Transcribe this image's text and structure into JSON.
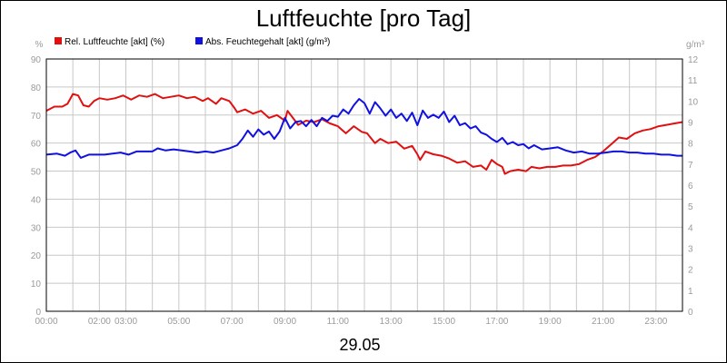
{
  "chart_data": {
    "type": "line",
    "title": "Luftfeuchte [pro Tag]",
    "date_label": "29.05",
    "x_tick_labels": [
      "00:00",
      "02:00",
      "03:00",
      "05:00",
      "07:00",
      "09:00",
      "11:00",
      "13:00",
      "15:00",
      "17:00",
      "19:00",
      "21:00",
      "23:00"
    ],
    "x_tick_hours": [
      0,
      2,
      3,
      5,
      7,
      9,
      11,
      13,
      15,
      17,
      19,
      21,
      23
    ],
    "x_range_hours": [
      0,
      24
    ],
    "grid": true,
    "left_axis": {
      "unit": "%",
      "range": [
        0,
        90
      ],
      "ticks": [
        "0",
        "10",
        "20",
        "30",
        "40",
        "50",
        "60",
        "70",
        "80",
        "90"
      ]
    },
    "right_axis": {
      "unit": "g/m³",
      "range": [
        0,
        12
      ],
      "ticks": [
        "0",
        "1",
        "2",
        "3",
        "4",
        "5",
        "6",
        "7",
        "8",
        "9",
        "10",
        "11",
        "12"
      ]
    },
    "legend_position": "top-left",
    "series": [
      {
        "name": "Rel. Luftfeuchte [akt] (%)",
        "axis": "left",
        "color": "#e01010",
        "points": [
          [
            0.0,
            71.5
          ],
          [
            0.3,
            73
          ],
          [
            0.6,
            73
          ],
          [
            0.8,
            74
          ],
          [
            1.0,
            77.5
          ],
          [
            1.2,
            77
          ],
          [
            1.4,
            73.5
          ],
          [
            1.6,
            73
          ],
          [
            1.8,
            75
          ],
          [
            2.0,
            76
          ],
          [
            2.3,
            75.5
          ],
          [
            2.6,
            76
          ],
          [
            2.9,
            77
          ],
          [
            3.2,
            75.5
          ],
          [
            3.5,
            77
          ],
          [
            3.8,
            76.5
          ],
          [
            4.1,
            77.5
          ],
          [
            4.4,
            76
          ],
          [
            4.7,
            76.5
          ],
          [
            5.0,
            77
          ],
          [
            5.3,
            76
          ],
          [
            5.6,
            76.5
          ],
          [
            5.9,
            75
          ],
          [
            6.1,
            76
          ],
          [
            6.4,
            74
          ],
          [
            6.6,
            76
          ],
          [
            6.9,
            75
          ],
          [
            7.1,
            72.5
          ],
          [
            7.2,
            71
          ],
          [
            7.5,
            72
          ],
          [
            7.8,
            70.5
          ],
          [
            8.1,
            71.5
          ],
          [
            8.4,
            69
          ],
          [
            8.7,
            70
          ],
          [
            9.0,
            68
          ],
          [
            9.1,
            71.5
          ],
          [
            9.3,
            69
          ],
          [
            9.5,
            66.5
          ],
          [
            9.8,
            68
          ],
          [
            10.1,
            67.5
          ],
          [
            10.4,
            68.5
          ],
          [
            10.7,
            67
          ],
          [
            11.0,
            66
          ],
          [
            11.3,
            63.5
          ],
          [
            11.6,
            66
          ],
          [
            11.9,
            64
          ],
          [
            12.1,
            63.5
          ],
          [
            12.4,
            60
          ],
          [
            12.6,
            61.5
          ],
          [
            12.9,
            60
          ],
          [
            13.2,
            60.5
          ],
          [
            13.5,
            58
          ],
          [
            13.8,
            59
          ],
          [
            14.0,
            56
          ],
          [
            14.1,
            54
          ],
          [
            14.3,
            57
          ],
          [
            14.6,
            56
          ],
          [
            14.9,
            55.5
          ],
          [
            15.2,
            54.5
          ],
          [
            15.5,
            53
          ],
          [
            15.8,
            53.5
          ],
          [
            16.1,
            51.5
          ],
          [
            16.4,
            52
          ],
          [
            16.6,
            50.5
          ],
          [
            16.8,
            54
          ],
          [
            17.0,
            52.5
          ],
          [
            17.2,
            51.5
          ],
          [
            17.3,
            49
          ],
          [
            17.5,
            50
          ],
          [
            17.8,
            50.5
          ],
          [
            18.1,
            50
          ],
          [
            18.3,
            51.5
          ],
          [
            18.6,
            51
          ],
          [
            18.9,
            51.5
          ],
          [
            19.2,
            51.5
          ],
          [
            19.5,
            52
          ],
          [
            19.8,
            52
          ],
          [
            20.1,
            52.5
          ],
          [
            20.4,
            54
          ],
          [
            20.7,
            55
          ],
          [
            21.0,
            57
          ],
          [
            21.3,
            59.5
          ],
          [
            21.6,
            62
          ],
          [
            21.9,
            61.5
          ],
          [
            22.2,
            63.5
          ],
          [
            22.5,
            64.5
          ],
          [
            22.8,
            65
          ],
          [
            23.1,
            66
          ],
          [
            23.4,
            66.5
          ],
          [
            23.7,
            67
          ],
          [
            24.0,
            67.5
          ]
        ]
      },
      {
        "name": "Abs. Feuchtegehalt [akt] (g/m³)",
        "axis": "right",
        "color": "#1010e0",
        "points": [
          [
            0.0,
            7.45
          ],
          [
            0.4,
            7.5
          ],
          [
            0.7,
            7.4
          ],
          [
            0.9,
            7.55
          ],
          [
            1.1,
            7.65
          ],
          [
            1.3,
            7.3
          ],
          [
            1.6,
            7.45
          ],
          [
            1.9,
            7.45
          ],
          [
            2.2,
            7.45
          ],
          [
            2.5,
            7.5
          ],
          [
            2.8,
            7.55
          ],
          [
            3.1,
            7.45
          ],
          [
            3.4,
            7.6
          ],
          [
            3.7,
            7.6
          ],
          [
            4.0,
            7.6
          ],
          [
            4.2,
            7.75
          ],
          [
            4.5,
            7.65
          ],
          [
            4.8,
            7.7
          ],
          [
            5.1,
            7.65
          ],
          [
            5.4,
            7.6
          ],
          [
            5.7,
            7.55
          ],
          [
            6.0,
            7.6
          ],
          [
            6.3,
            7.55
          ],
          [
            6.6,
            7.65
          ],
          [
            6.9,
            7.75
          ],
          [
            7.2,
            7.9
          ],
          [
            7.4,
            8.2
          ],
          [
            7.6,
            8.6
          ],
          [
            7.8,
            8.3
          ],
          [
            8.0,
            8.65
          ],
          [
            8.2,
            8.4
          ],
          [
            8.4,
            8.55
          ],
          [
            8.6,
            8.2
          ],
          [
            8.8,
            8.55
          ],
          [
            9.0,
            9.2
          ],
          [
            9.2,
            8.7
          ],
          [
            9.4,
            9.0
          ],
          [
            9.6,
            9.05
          ],
          [
            9.8,
            8.8
          ],
          [
            10.0,
            9.1
          ],
          [
            10.2,
            8.8
          ],
          [
            10.4,
            9.2
          ],
          [
            10.6,
            9.05
          ],
          [
            10.8,
            9.3
          ],
          [
            11.0,
            9.25
          ],
          [
            11.2,
            9.6
          ],
          [
            11.4,
            9.4
          ],
          [
            11.6,
            9.8
          ],
          [
            11.8,
            10.1
          ],
          [
            12.0,
            9.9
          ],
          [
            12.2,
            9.4
          ],
          [
            12.4,
            9.95
          ],
          [
            12.6,
            9.65
          ],
          [
            12.8,
            9.3
          ],
          [
            13.0,
            9.6
          ],
          [
            13.2,
            9.2
          ],
          [
            13.4,
            9.4
          ],
          [
            13.6,
            9.05
          ],
          [
            13.8,
            9.45
          ],
          [
            14.0,
            8.85
          ],
          [
            14.2,
            9.55
          ],
          [
            14.4,
            9.2
          ],
          [
            14.6,
            9.35
          ],
          [
            14.8,
            9.2
          ],
          [
            15.0,
            9.5
          ],
          [
            15.2,
            9.0
          ],
          [
            15.4,
            9.3
          ],
          [
            15.6,
            8.85
          ],
          [
            15.8,
            8.95
          ],
          [
            16.0,
            8.7
          ],
          [
            16.2,
            8.8
          ],
          [
            16.4,
            8.5
          ],
          [
            16.6,
            8.4
          ],
          [
            16.8,
            8.2
          ],
          [
            17.0,
            8.05
          ],
          [
            17.2,
            8.25
          ],
          [
            17.4,
            7.95
          ],
          [
            17.6,
            8.05
          ],
          [
            17.8,
            7.9
          ],
          [
            18.0,
            7.95
          ],
          [
            18.2,
            7.75
          ],
          [
            18.4,
            7.9
          ],
          [
            18.7,
            7.7
          ],
          [
            19.0,
            7.75
          ],
          [
            19.3,
            7.8
          ],
          [
            19.6,
            7.65
          ],
          [
            19.9,
            7.55
          ],
          [
            20.2,
            7.6
          ],
          [
            20.5,
            7.5
          ],
          [
            20.8,
            7.5
          ],
          [
            21.1,
            7.55
          ],
          [
            21.4,
            7.6
          ],
          [
            21.7,
            7.6
          ],
          [
            22.0,
            7.55
          ],
          [
            22.3,
            7.55
          ],
          [
            22.6,
            7.5
          ],
          [
            22.9,
            7.5
          ],
          [
            23.2,
            7.45
          ],
          [
            23.5,
            7.45
          ],
          [
            23.8,
            7.4
          ],
          [
            24.0,
            7.4
          ]
        ]
      }
    ]
  }
}
